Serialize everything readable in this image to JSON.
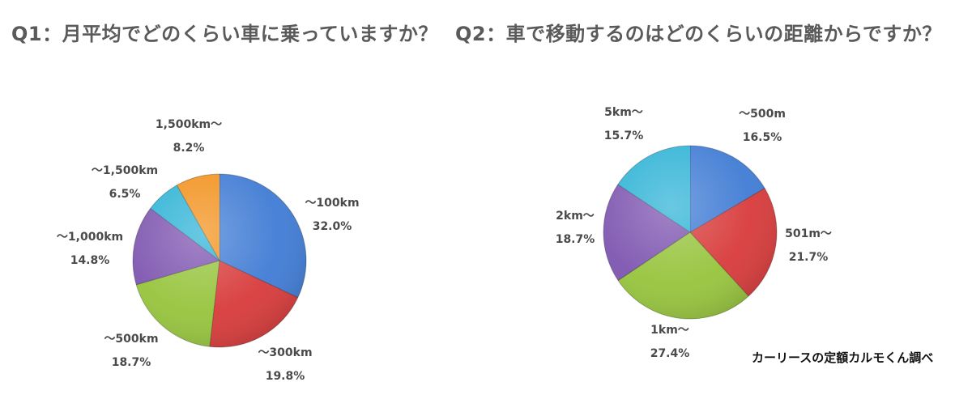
{
  "chart_data": [
    {
      "type": "pie",
      "title": "Q1：月平均でどのくらい車に乗っていますか？",
      "slices": [
        {
          "label": "～100km",
          "value": 32.0,
          "value_label": "32.0%",
          "color": "#3f7bd4"
        },
        {
          "label": "～300km",
          "value": 19.8,
          "value_label": "19.8%",
          "color": "#d83a3a"
        },
        {
          "label": "～500km",
          "value": 18.7,
          "value_label": "18.7%",
          "color": "#96c43c"
        },
        {
          "label": "～1,000km",
          "value": 14.8,
          "value_label": "14.8%",
          "color": "#7e55b0"
        },
        {
          "label": "～1,500km",
          "value": 6.5,
          "value_label": "6.5%",
          "color": "#2fb3d6"
        },
        {
          "label": "1,500km～",
          "value": 8.2,
          "value_label": "8.2%",
          "color": "#f2921e"
        }
      ]
    },
    {
      "type": "pie",
      "title": "Q2：車で移動するのはどのくらいの距離からですか？",
      "slices": [
        {
          "label": "～500m",
          "value": 16.5,
          "value_label": "16.5%",
          "color": "#3f7bd4"
        },
        {
          "label": "501m～",
          "value": 21.7,
          "value_label": "21.7%",
          "color": "#d83a3a"
        },
        {
          "label": "1km～",
          "value": 27.4,
          "value_label": "27.4%",
          "color": "#96c43c"
        },
        {
          "label": "2km～",
          "value": 18.7,
          "value_label": "18.7%",
          "color": "#7e55b0"
        },
        {
          "label": "5km～",
          "value": 15.7,
          "value_label": "15.7%",
          "color": "#2fb3d6"
        }
      ]
    }
  ],
  "credit": "カーリースの定額カルモくん調べ"
}
